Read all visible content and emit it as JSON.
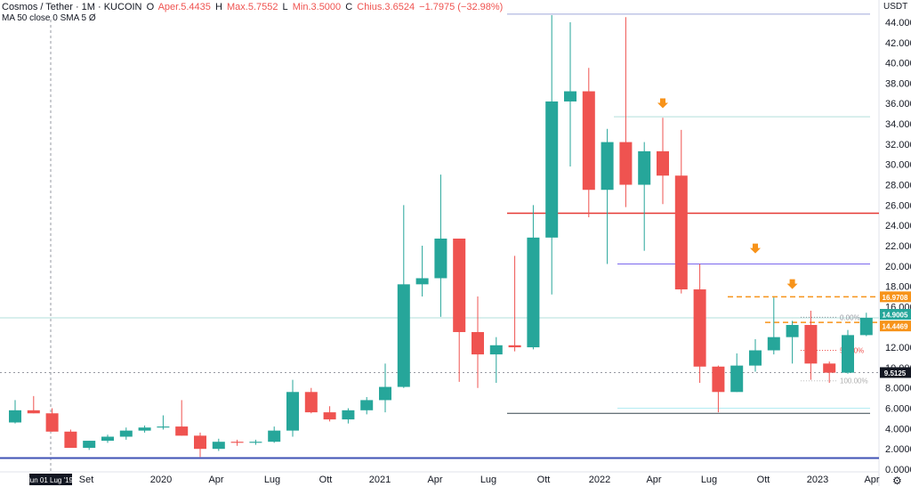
{
  "header": {
    "symbol": "Cosmos / Tether · 1M · KUCOIN",
    "open_label": "O",
    "open": "Aper.5.4435",
    "high_label": "H",
    "high": "Max.5.7552",
    "low_label": "L",
    "low": "Min.3.5000",
    "close_label": "C",
    "close": "Chius.3.6524",
    "change": "−1.7975 (−32.98%)",
    "indicators": "MA 50 close 0 SMA 5",
    "indicator_value": "Ø"
  },
  "currency": "USDT",
  "settings_icon": "gear-icon",
  "colors": {
    "up": "#26a69a",
    "down": "#ef5350",
    "orange": "#f7931a",
    "redline": "#e53935",
    "blueline": "#3f51b5",
    "purple": "#7b68ee"
  },
  "chart_data": {
    "type": "candlestick",
    "ylim": [
      0,
      46
    ],
    "y_ticks": [
      "0.0000",
      "2.0000",
      "4.0000",
      "6.0000",
      "8.0000",
      "10.0000",
      "12.0000",
      "14.0000",
      "16.0000",
      "18.0000",
      "20.0000",
      "22.0000",
      "24.0000",
      "26.0000",
      "28.0000",
      "30.0000",
      "32.0000",
      "34.0000",
      "36.0000",
      "38.0000",
      "40.0000",
      "42.0000",
      "44.0000"
    ],
    "x_ticks": [
      "Set",
      "2020",
      "Apr",
      "Lug",
      "Ott",
      "2021",
      "Apr",
      "Lug",
      "Ott",
      "2022",
      "Apr",
      "Lug",
      "Ott",
      "2023",
      "Apr"
    ],
    "crosshair_date": "lun 01 Lug '19",
    "price_labels": [
      {
        "value": 16.9708,
        "text": "16.9708",
        "color": "#f7931a"
      },
      {
        "value": 14.9005,
        "text": "14.9005",
        "color": "#26a69a"
      },
      {
        "value": 14.4469,
        "text": "14.4469",
        "color": "#f7931a"
      },
      {
        "value": 9.5125,
        "text": "9.5125",
        "color": "#131722"
      }
    ],
    "fib_labels": [
      "0.00%",
      "50.00%",
      "100.00%"
    ],
    "candles": [
      {
        "o": 4.6,
        "h": 6.8,
        "l": 4.5,
        "c": 5.8
      },
      {
        "o": 5.8,
        "h": 7.2,
        "l": 5.5,
        "c": 5.5
      },
      {
        "o": 5.5,
        "h": 6.0,
        "l": 3.7,
        "c": 3.7
      },
      {
        "o": 3.7,
        "h": 3.9,
        "l": 2.1,
        "c": 2.1
      },
      {
        "o": 2.1,
        "h": 2.8,
        "l": 1.9,
        "c": 2.8
      },
      {
        "o": 2.8,
        "h": 3.4,
        "l": 2.6,
        "c": 3.2
      },
      {
        "o": 3.2,
        "h": 4.1,
        "l": 2.9,
        "c": 3.8
      },
      {
        "o": 3.8,
        "h": 4.3,
        "l": 3.6,
        "c": 4.1
      },
      {
        "o": 4.1,
        "h": 5.3,
        "l": 3.9,
        "c": 4.2
      },
      {
        "o": 4.2,
        "h": 6.8,
        "l": 3.3,
        "c": 3.3
      },
      {
        "o": 3.3,
        "h": 3.6,
        "l": 1.2,
        "c": 2.0
      },
      {
        "o": 2.0,
        "h": 3.0,
        "l": 1.8,
        "c": 2.7
      },
      {
        "o": 2.7,
        "h": 2.9,
        "l": 2.3,
        "c": 2.6
      },
      {
        "o": 2.6,
        "h": 2.9,
        "l": 2.4,
        "c": 2.7
      },
      {
        "o": 2.7,
        "h": 4.2,
        "l": 2.6,
        "c": 3.8
      },
      {
        "o": 3.8,
        "h": 8.8,
        "l": 3.2,
        "c": 7.6
      },
      {
        "o": 7.6,
        "h": 8.0,
        "l": 5.5,
        "c": 5.6
      },
      {
        "o": 5.6,
        "h": 6.2,
        "l": 4.7,
        "c": 4.9
      },
      {
        "o": 4.9,
        "h": 6.0,
        "l": 4.5,
        "c": 5.8
      },
      {
        "o": 5.8,
        "h": 7.1,
        "l": 5.4,
        "c": 6.8
      },
      {
        "o": 6.8,
        "h": 10.4,
        "l": 5.6,
        "c": 8.1
      },
      {
        "o": 8.1,
        "h": 26.0,
        "l": 8.0,
        "c": 18.2
      },
      {
        "o": 18.2,
        "h": 22.0,
        "l": 17.0,
        "c": 18.8
      },
      {
        "o": 18.8,
        "h": 29.0,
        "l": 15.0,
        "c": 22.7
      },
      {
        "o": 22.7,
        "h": 22.7,
        "l": 8.6,
        "c": 13.5
      },
      {
        "o": 13.5,
        "h": 17.0,
        "l": 8.0,
        "c": 11.3
      },
      {
        "o": 11.3,
        "h": 13.0,
        "l": 8.5,
        "c": 12.2
      },
      {
        "o": 12.2,
        "h": 21.0,
        "l": 11.6,
        "c": 12.0
      },
      {
        "o": 12.0,
        "h": 26.0,
        "l": 11.8,
        "c": 22.8
      },
      {
        "o": 22.8,
        "h": 44.7,
        "l": 17.2,
        "c": 36.2
      },
      {
        "o": 36.2,
        "h": 44.0,
        "l": 29.8,
        "c": 37.2
      },
      {
        "o": 37.2,
        "h": 39.5,
        "l": 24.8,
        "c": 27.5
      },
      {
        "o": 27.5,
        "h": 33.5,
        "l": 20.2,
        "c": 32.2
      },
      {
        "o": 32.2,
        "h": 44.5,
        "l": 25.8,
        "c": 28.0
      },
      {
        "o": 28.0,
        "h": 32.2,
        "l": 21.5,
        "c": 31.3
      },
      {
        "o": 31.3,
        "h": 34.6,
        "l": 26.1,
        "c": 28.9
      },
      {
        "o": 28.9,
        "h": 33.4,
        "l": 17.3,
        "c": 17.7
      },
      {
        "o": 17.7,
        "h": 20.2,
        "l": 8.5,
        "c": 10.1
      },
      {
        "o": 10.1,
        "h": 10.2,
        "l": 5.6,
        "c": 7.6
      },
      {
        "o": 7.6,
        "h": 11.4,
        "l": 7.6,
        "c": 10.2
      },
      {
        "o": 10.2,
        "h": 12.8,
        "l": 9.6,
        "c": 11.7
      },
      {
        "o": 11.7,
        "h": 16.9,
        "l": 11.3,
        "c": 13.0
      },
      {
        "o": 13.0,
        "h": 14.6,
        "l": 10.4,
        "c": 14.2
      },
      {
        "o": 14.2,
        "h": 15.6,
        "l": 8.8,
        "c": 10.4
      },
      {
        "o": 10.4,
        "h": 10.6,
        "l": 8.5,
        "c": 9.5
      },
      {
        "o": 9.5,
        "h": 13.7,
        "l": 9.4,
        "c": 13.2
      },
      {
        "o": 13.2,
        "h": 15.4,
        "l": 13.1,
        "c": 14.9
      }
    ]
  }
}
